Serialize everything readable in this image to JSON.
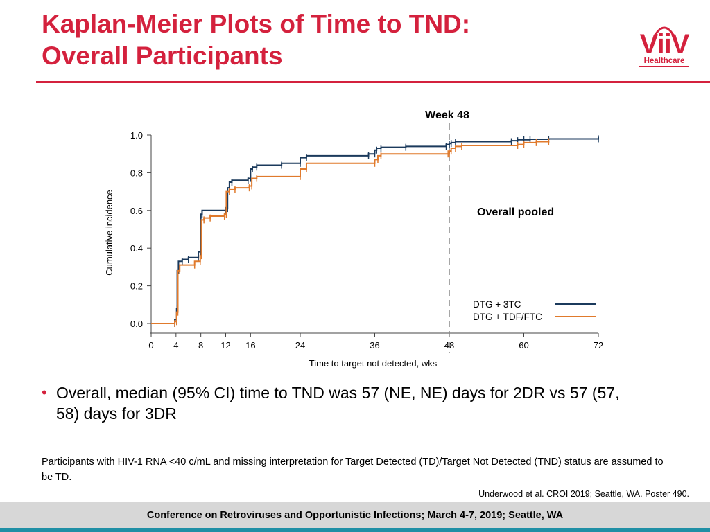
{
  "header": {
    "title_line1": "Kaplan-Meier Plots of Time to TND:",
    "title_line2": "Overall Participants",
    "logo_text": "ViiV",
    "logo_subtext": "Healthcare"
  },
  "colors": {
    "accent_red": "#d4213d",
    "series_navy": "#1b3a5c",
    "series_orange": "#e07a2c",
    "footer_gray": "#d7d7d7",
    "footer_stripe": "#1f8fa5"
  },
  "chart_data": {
    "type": "line",
    "step": true,
    "title": "",
    "panel_label": "Overall pooled",
    "xlabel": "Time to target not detected, wks",
    "ylabel": "Cumulative incidence",
    "xlim": [
      0,
      72
    ],
    "ylim": [
      0,
      1.0
    ],
    "xticks": [
      0,
      4,
      8,
      12,
      16,
      24,
      36,
      48,
      60,
      72
    ],
    "yticks": [
      0.0,
      0.2,
      0.4,
      0.6,
      0.8,
      1.0
    ],
    "ytick_labels": [
      "0.0",
      "0.2",
      "0.4",
      "0.6",
      "0.8",
      "1.0"
    ],
    "grid": false,
    "legend_position": "lower-right",
    "reference_line": {
      "x": 48,
      "label": "Week 48",
      "style": "dashed"
    },
    "series": [
      {
        "name": "DTG + 3TC",
        "color": "#1b3a5c",
        "x": [
          0,
          3.8,
          4.1,
          4.2,
          4.4,
          5,
          6,
          7.6,
          8,
          8.2,
          12,
          12.3,
          12.6,
          13,
          15.6,
          16,
          16.3,
          17,
          21,
          24,
          25,
          35,
          36,
          36.3,
          37,
          41,
          47.5,
          48,
          48.3,
          49,
          58,
          59,
          60,
          61,
          64,
          72
        ],
        "y": [
          0,
          0.02,
          0.08,
          0.28,
          0.33,
          0.34,
          0.35,
          0.38,
          0.58,
          0.6,
          0.61,
          0.72,
          0.75,
          0.76,
          0.77,
          0.82,
          0.83,
          0.84,
          0.85,
          0.88,
          0.89,
          0.9,
          0.92,
          0.93,
          0.935,
          0.94,
          0.95,
          0.955,
          0.96,
          0.965,
          0.97,
          0.975,
          0.975,
          0.978,
          0.98,
          0.99
        ]
      },
      {
        "name": "DTG + TDF/FTC",
        "color": "#e07a2c",
        "x": [
          0,
          3.8,
          4.1,
          4.3,
          4.6,
          7,
          7.9,
          8.1,
          8.5,
          9.5,
          11.8,
          12.1,
          12.6,
          13.5,
          15.8,
          16.2,
          17,
          24,
          25,
          36,
          36.5,
          37,
          47.8,
          48,
          48.3,
          49,
          50,
          59,
          60,
          62,
          64
        ],
        "y": [
          0,
          0.01,
          0.06,
          0.28,
          0.31,
          0.33,
          0.36,
          0.55,
          0.56,
          0.57,
          0.58,
          0.7,
          0.71,
          0.72,
          0.73,
          0.77,
          0.78,
          0.82,
          0.85,
          0.87,
          0.89,
          0.9,
          0.9,
          0.915,
          0.93,
          0.94,
          0.945,
          0.95,
          0.96,
          0.965,
          0.97
        ]
      }
    ]
  },
  "bullet": "Overall, median (95% CI) time to TND was 57 (NE, NE) days for 2DR vs 57 (57, 58) days for 3DR",
  "footnote": "Participants with HIV-1 RNA <40 c/mL and missing interpretation for Target Detected (TD)/Target Not Detected (TND) status are assumed to be TD.",
  "reference": "Underwood et al. CROI 2019; Seattle, WA. Poster 490.",
  "footer": "Conference on Retroviruses and Opportunistic Infections; March 4-7, 2019; Seattle, WA"
}
